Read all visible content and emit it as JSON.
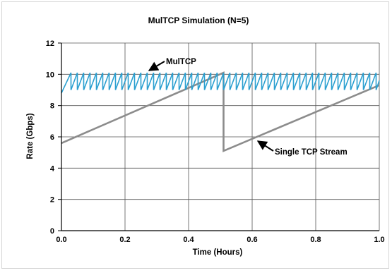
{
  "chart_data": {
    "type": "line",
    "title": "MulTCP Simulation (N=5)",
    "xlabel": "Time (Hours)",
    "ylabel": "Rate (Gbps)",
    "xlim": [
      0,
      1.0
    ],
    "ylim": [
      0,
      12
    ],
    "xticks": [
      "0.0",
      "0.2",
      "0.4",
      "0.6",
      "0.8",
      "1.0"
    ],
    "yticks": [
      "0",
      "2",
      "4",
      "6",
      "8",
      "10",
      "12"
    ],
    "grid": true,
    "series": [
      {
        "name": "MulTCP",
        "color": "#2a9fd0",
        "pattern": "sawtooth",
        "x": [
          0.0,
          0.03,
          0.03,
          0.05,
          0.05,
          0.07,
          0.07,
          0.09,
          0.09,
          0.11,
          0.11,
          0.13,
          0.13,
          0.15,
          0.15,
          0.17,
          0.17,
          0.19,
          0.19,
          0.21,
          0.21,
          0.23,
          0.23,
          0.25,
          0.25,
          0.27,
          0.27,
          0.29,
          0.29,
          0.31,
          0.31,
          0.33,
          0.33,
          0.35,
          0.35,
          0.37,
          0.37,
          0.39,
          0.39,
          0.41,
          0.41,
          0.43,
          0.43,
          0.45,
          0.45,
          0.47,
          0.47,
          0.49,
          0.49,
          0.51,
          0.51,
          0.53,
          0.53,
          0.55,
          0.55,
          0.57,
          0.57,
          0.59,
          0.59,
          0.61,
          0.61,
          0.63,
          0.63,
          0.65,
          0.65,
          0.67,
          0.67,
          0.69,
          0.69,
          0.71,
          0.71,
          0.73,
          0.73,
          0.75,
          0.75,
          0.77,
          0.77,
          0.79,
          0.79,
          0.81,
          0.81,
          0.83,
          0.83,
          0.85,
          0.85,
          0.87,
          0.87,
          0.89,
          0.89,
          0.91,
          0.91,
          0.93,
          0.93,
          0.95,
          0.95,
          0.97,
          0.97,
          0.99,
          0.99,
          1.0
        ],
        "y": [
          8.8,
          10.1,
          9.0,
          10.1,
          9.0,
          10.1,
          9.0,
          10.1,
          9.0,
          10.1,
          9.0,
          10.1,
          9.0,
          10.1,
          9.0,
          10.1,
          9.0,
          10.1,
          9.0,
          10.1,
          9.0,
          10.1,
          9.0,
          10.1,
          9.0,
          10.1,
          9.0,
          10.1,
          9.0,
          10.1,
          9.0,
          10.1,
          9.0,
          10.1,
          9.0,
          10.1,
          9.0,
          10.1,
          9.0,
          10.1,
          9.0,
          10.1,
          9.0,
          10.1,
          9.0,
          10.1,
          9.0,
          10.1,
          9.0,
          10.1,
          9.0,
          10.1,
          9.0,
          10.1,
          9.0,
          10.1,
          9.0,
          10.1,
          9.0,
          10.1,
          9.0,
          10.1,
          9.0,
          10.1,
          9.0,
          10.1,
          9.0,
          10.1,
          9.0,
          10.1,
          9.0,
          10.1,
          9.0,
          10.1,
          9.0,
          10.1,
          9.0,
          10.1,
          9.0,
          10.1,
          9.0,
          10.1,
          9.0,
          10.1,
          9.0,
          10.1,
          9.0,
          10.1,
          9.0,
          10.1,
          9.0,
          10.1,
          9.0,
          10.1,
          9.0,
          10.1,
          9.0,
          10.1,
          9.0,
          9.6
        ]
      },
      {
        "name": "Single TCP Stream",
        "color": "#8c8c8c",
        "x": [
          0.0,
          0.51,
          0.51,
          1.0
        ],
        "y": [
          5.6,
          10.1,
          5.1,
          9.3
        ]
      }
    ],
    "annotations": [
      {
        "text": "MulTCP",
        "series": 0,
        "x": 0.28,
        "y": 10.2
      },
      {
        "text": "Single TCP Stream",
        "series": 1,
        "x": 0.62,
        "y": 5.8
      }
    ]
  }
}
